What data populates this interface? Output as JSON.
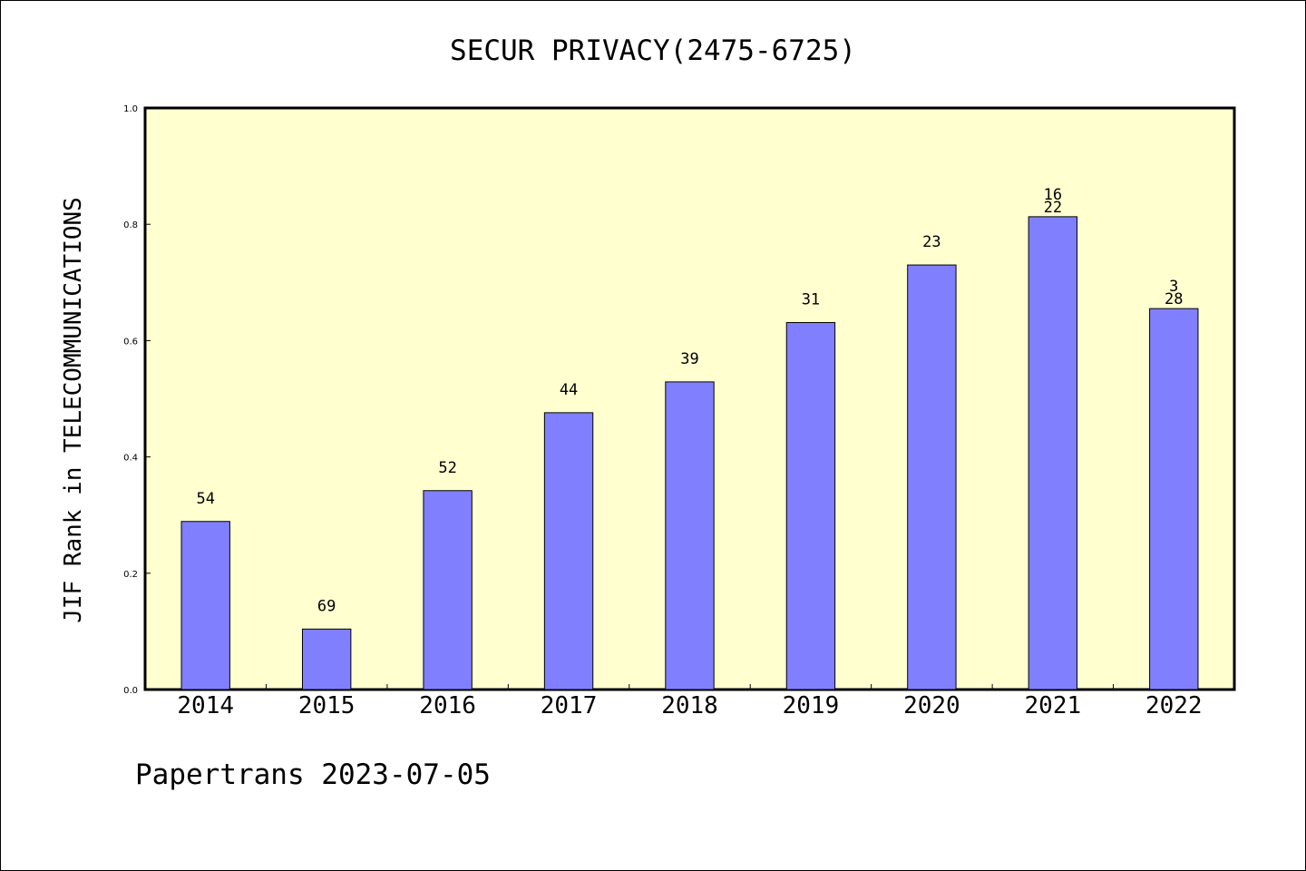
{
  "chart_data": {
    "type": "bar",
    "title": "SECUR PRIVACY(2475-6725)",
    "xlabel": "",
    "ylabel": "JIF Rank in TELECOMMUNICATIONS",
    "ylim": [
      0,
      1.0
    ],
    "yticks": [
      "0.0",
      "0.2",
      "0.4",
      "0.6",
      "0.8",
      "1.0"
    ],
    "grid": false,
    "categories": [
      "2014",
      "2015",
      "2016",
      "2017",
      "2018",
      "2019",
      "2020",
      "2021",
      "2022"
    ],
    "values": [
      0.289,
      0.104,
      0.342,
      0.476,
      0.529,
      0.631,
      0.73,
      0.813,
      0.655
    ],
    "data_labels": [
      [
        "54"
      ],
      [
        "69"
      ],
      [
        "52"
      ],
      [
        "44"
      ],
      [
        "39"
      ],
      [
        "31"
      ],
      [
        "23"
      ],
      [
        "16",
        "22"
      ],
      [
        "3",
        "28"
      ]
    ],
    "colors": {
      "plot_background": "#ffffd0",
      "bar_fill": "#8080ff",
      "bar_edge": "#000000"
    }
  },
  "footer": {
    "text": "Papertrans 2023-07-05"
  }
}
